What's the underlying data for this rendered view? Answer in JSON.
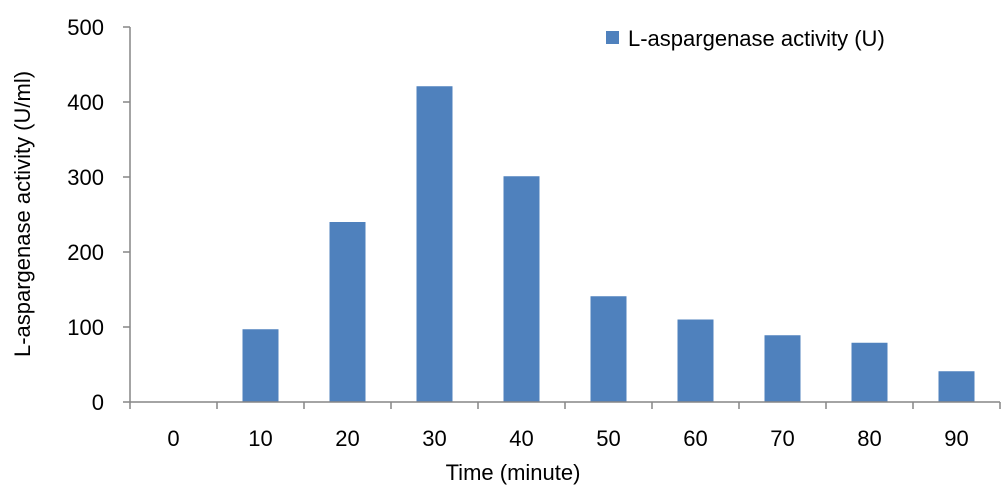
{
  "chart_data": {
    "type": "bar",
    "categories": [
      "0",
      "10",
      "20",
      "30",
      "40",
      "50",
      "60",
      "70",
      "80",
      "90"
    ],
    "series": [
      {
        "name": "L-aspargenase activity (U)",
        "values": [
          0,
          97,
          240,
          421,
          301,
          141,
          110,
          89,
          79,
          41
        ],
        "color": "#4F81BD"
      }
    ],
    "xlabel": "Time (minute)",
    "ylabel": "L-aspargenase activity (U/ml)",
    "ylim": [
      0,
      500
    ],
    "yticks": [
      0,
      100,
      200,
      300,
      400,
      500
    ],
    "grid": false,
    "legend_position": "top-right"
  }
}
